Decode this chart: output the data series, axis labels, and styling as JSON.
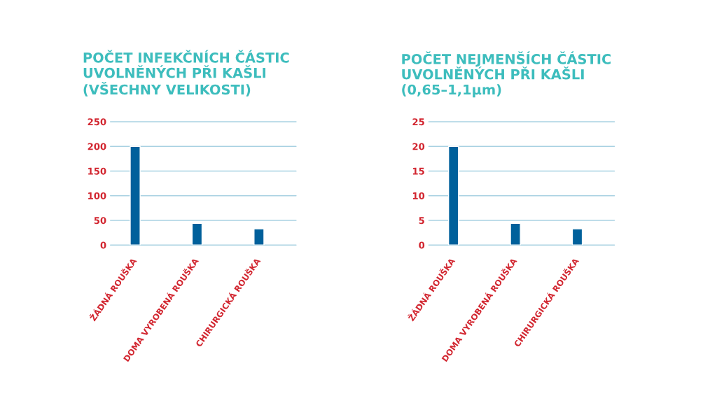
{
  "chart_data": [
    {
      "type": "bar",
      "title": "POČET INFEKČNÍCH ČÁSTIC\nUVOLNĚNÝCH PŘI KAŠLI\n(VŠECHNY VELIKOSTI)",
      "categories": [
        "ŽÁDNÁ ROUŠKA",
        "DOMA VYROBENÁ ROUŠKA",
        "CHIRURGICKÁ ROUŠKA"
      ],
      "values": [
        200,
        44,
        33
      ],
      "color": "#00609b",
      "ylim": [
        0,
        250
      ],
      "yticks": [
        0,
        50,
        100,
        150,
        200,
        250
      ],
      "grid": "y"
    },
    {
      "type": "bar",
      "title": "POČET NEJMENŠÍCH ČÁSTIC\nUVOLNĚNÝCH PŘI KAŠLI\n(0,65–1,1µm)",
      "categories": [
        "ŽÁDNÁ ROUŠKA",
        "DOMA VYROBENÁ ROUŠKA",
        "CHIRURGICKÁ ROUŠKA"
      ],
      "values": [
        20,
        4.4,
        3.3
      ],
      "color": "#00609b",
      "ylim": [
        0,
        25
      ],
      "yticks": [
        0,
        5,
        10,
        15,
        20,
        25
      ],
      "grid": "y"
    }
  ]
}
